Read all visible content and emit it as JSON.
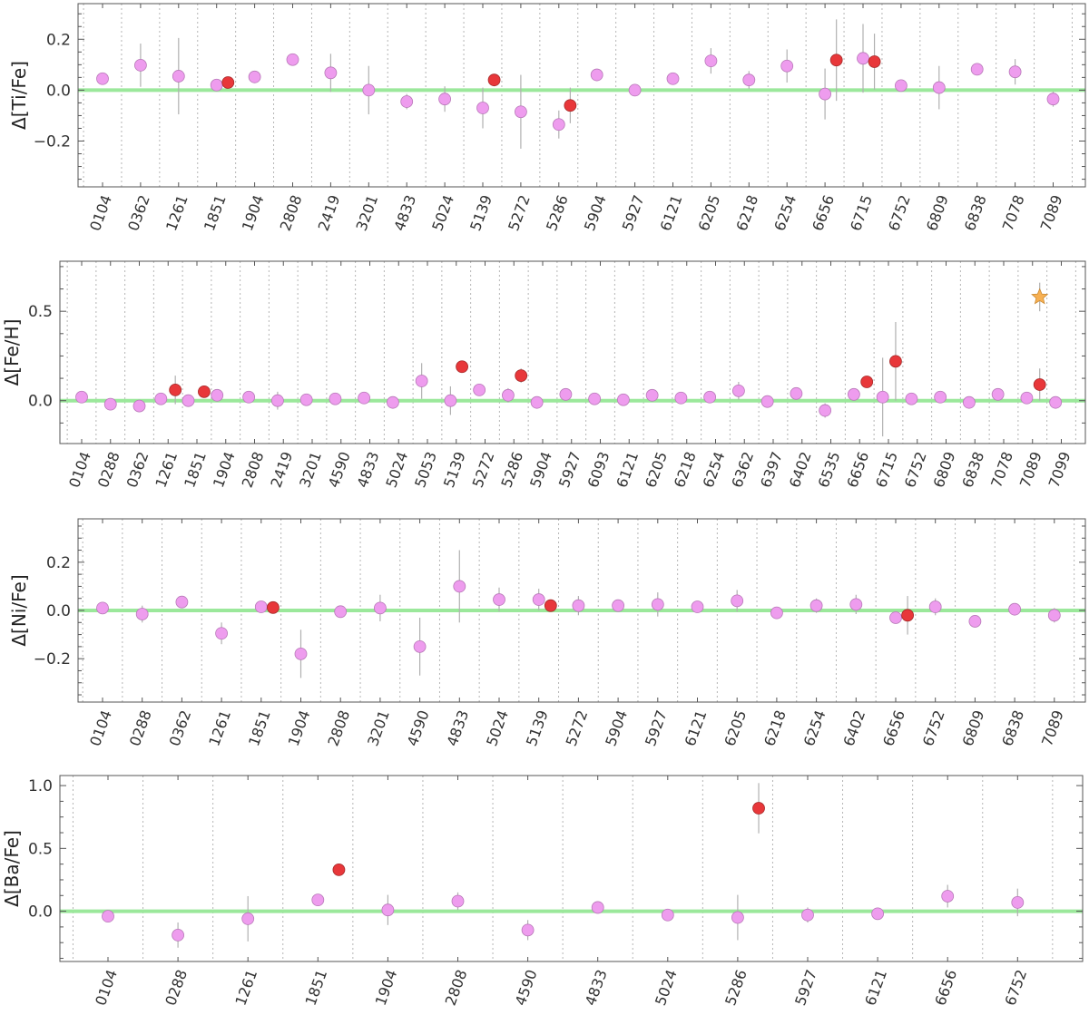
{
  "chart_data": [
    {
      "type": "scatter",
      "ylabel": "Δ[Ti/Fe]",
      "ylim": [
        -0.38,
        0.34
      ],
      "yticks": [
        -0.2,
        0.0,
        0.2
      ],
      "grid": "vertical dotted",
      "reference_line": 0.0,
      "categories": [
        "0104",
        "0362",
        "1261",
        "1851",
        "1904",
        "2808",
        "2419",
        "3201",
        "4833",
        "5024",
        "5139",
        "5272",
        "5286",
        "5904",
        "5927",
        "6121",
        "6205",
        "6218",
        "6254",
        "6656",
        "6715",
        "6752",
        "6809",
        "6838",
        "7078",
        "7089"
      ],
      "series": [
        {
          "marker": "circle",
          "color": "#ee9cee",
          "points": [
            {
              "x": 0,
              "y": 0.045,
              "err": 0.0
            },
            {
              "x": 1,
              "y": 0.098,
              "err": 0.085
            },
            {
              "x": 2,
              "y": 0.055,
              "err": 0.15
            },
            {
              "x": 3,
              "y": 0.02,
              "err": 0.0
            },
            {
              "x": 4,
              "y": 0.052,
              "err": 0.0
            },
            {
              "x": 5,
              "y": 0.12,
              "err": 0.0
            },
            {
              "x": 6,
              "y": 0.068,
              "err": 0.075
            },
            {
              "x": 7,
              "y": 0.0,
              "err": 0.095
            },
            {
              "x": 8,
              "y": -0.045,
              "err": 0.03
            },
            {
              "x": 9,
              "y": -0.035,
              "err": 0.05
            },
            {
              "x": 10,
              "y": -0.07,
              "err": 0.08
            },
            {
              "x": 11,
              "y": -0.085,
              "err": 0.145
            },
            {
              "x": 12,
              "y": -0.135,
              "err": 0.055
            },
            {
              "x": 13,
              "y": 0.06,
              "err": 0.0
            },
            {
              "x": 14,
              "y": 0.0,
              "err": 0.02
            },
            {
              "x": 15,
              "y": 0.045,
              "err": 0.0
            },
            {
              "x": 16,
              "y": 0.115,
              "err": 0.05
            },
            {
              "x": 17,
              "y": 0.04,
              "err": 0.035
            },
            {
              "x": 18,
              "y": 0.095,
              "err": 0.065
            },
            {
              "x": 19,
              "y": -0.015,
              "err": 0.1
            },
            {
              "x": 20,
              "y": 0.125,
              "err": 0.135
            },
            {
              "x": 21,
              "y": 0.018,
              "err": 0.0
            },
            {
              "x": 22,
              "y": 0.01,
              "err": 0.085
            },
            {
              "x": 23,
              "y": 0.082,
              "err": 0.0
            },
            {
              "x": 24,
              "y": 0.072,
              "err": 0.05
            },
            {
              "x": 25,
              "y": -0.035,
              "err": 0.03
            }
          ]
        },
        {
          "marker": "circle",
          "color": "#e8373a",
          "points": [
            {
              "x": 3.3,
              "y": 0.03,
              "err": 0.0
            },
            {
              "x": 10.3,
              "y": 0.04,
              "err": 0.0
            },
            {
              "x": 12.3,
              "y": -0.06,
              "err": 0.07
            },
            {
              "x": 19.3,
              "y": 0.118,
              "err": 0.16
            },
            {
              "x": 20.3,
              "y": 0.112,
              "err": 0.11
            }
          ]
        }
      ]
    },
    {
      "type": "scatter",
      "ylabel": "Δ[Fe/H]",
      "ylim": [
        -0.24,
        0.78
      ],
      "yticks": [
        0.0,
        0.5
      ],
      "grid": "vertical dotted",
      "reference_line": 0.0,
      "categories": [
        "0104",
        "0288",
        "0362",
        "1261",
        "1851",
        "1904",
        "2808",
        "2419",
        "3201",
        "4590",
        "4833",
        "5024",
        "5053",
        "5139",
        "5272",
        "5286",
        "5904",
        "5927",
        "6093",
        "6121",
        "6205",
        "6218",
        "6254",
        "6362",
        "6397",
        "6402",
        "6535",
        "6656",
        "6715",
        "6752",
        "6809",
        "6838",
        "7078",
        "7089",
        "7099"
      ],
      "series": [
        {
          "marker": "circle",
          "color": "#ee9cee",
          "points": [
            {
              "x": 0,
              "y": 0.02,
              "err": 0.0
            },
            {
              "x": 1,
              "y": -0.02,
              "err": 0.0
            },
            {
              "x": 2,
              "y": -0.03,
              "err": 0.0
            },
            {
              "x": 2.75,
              "y": 0.01,
              "err": 0.0
            },
            {
              "x": 3.7,
              "y": 0.0,
              "err": 0.0
            },
            {
              "x": 4.7,
              "y": 0.03,
              "err": 0.0
            },
            {
              "x": 5.8,
              "y": 0.02,
              "err": 0.0
            },
            {
              "x": 6.8,
              "y": 0.0,
              "err": 0.05
            },
            {
              "x": 7.8,
              "y": 0.005,
              "err": 0.0
            },
            {
              "x": 8.8,
              "y": 0.01,
              "err": 0.0
            },
            {
              "x": 9.8,
              "y": 0.015,
              "err": 0.0
            },
            {
              "x": 10.8,
              "y": -0.01,
              "err": 0.0
            },
            {
              "x": 11.8,
              "y": 0.11,
              "err": 0.1
            },
            {
              "x": 12.8,
              "y": 0.0,
              "err": 0.08
            },
            {
              "x": 13.8,
              "y": 0.06,
              "err": 0.0
            },
            {
              "x": 14.8,
              "y": 0.03,
              "err": 0.04
            },
            {
              "x": 15.8,
              "y": -0.01,
              "err": 0.0
            },
            {
              "x": 16.8,
              "y": 0.035,
              "err": 0.0
            },
            {
              "x": 17.8,
              "y": 0.01,
              "err": 0.0
            },
            {
              "x": 18.8,
              "y": 0.005,
              "err": 0.0
            },
            {
              "x": 19.8,
              "y": 0.03,
              "err": 0.0
            },
            {
              "x": 20.8,
              "y": 0.015,
              "err": 0.0
            },
            {
              "x": 21.8,
              "y": 0.02,
              "err": 0.0
            },
            {
              "x": 22.8,
              "y": 0.055,
              "err": 0.05
            },
            {
              "x": 23.8,
              "y": -0.005,
              "err": 0.0
            },
            {
              "x": 24.8,
              "y": 0.04,
              "err": 0.0
            },
            {
              "x": 25.8,
              "y": -0.055,
              "err": 0.04
            },
            {
              "x": 26.8,
              "y": 0.035,
              "err": 0.0
            },
            {
              "x": 27.8,
              "y": 0.02,
              "err": 0.22
            },
            {
              "x": 28.8,
              "y": 0.01,
              "err": 0.0
            },
            {
              "x": 29.8,
              "y": 0.02,
              "err": 0.0
            },
            {
              "x": 30.8,
              "y": -0.01,
              "err": 0.0
            },
            {
              "x": 31.8,
              "y": 0.035,
              "err": 0.0
            },
            {
              "x": 32.8,
              "y": 0.015,
              "err": 0.0
            },
            {
              "x": 33.8,
              "y": -0.01,
              "err": 0.0
            }
          ]
        },
        {
          "marker": "circle",
          "color": "#e8373a",
          "points": [
            {
              "x": 3.25,
              "y": 0.06,
              "err": 0.08
            },
            {
              "x": 4.25,
              "y": 0.05,
              "err": 0.0
            },
            {
              "x": 13.2,
              "y": 0.19,
              "err": 0.0
            },
            {
              "x": 15.25,
              "y": 0.14,
              "err": 0.04
            },
            {
              "x": 27.25,
              "y": 0.105,
              "err": 0.0
            },
            {
              "x": 28.25,
              "y": 0.22,
              "err": 0.22
            },
            {
              "x": 33.25,
              "y": 0.09,
              "err": 0.09
            }
          ]
        },
        {
          "marker": "star",
          "color": "#f7b052",
          "points": [
            {
              "x": 33.25,
              "y": 0.58,
              "err": 0.08
            }
          ]
        }
      ]
    },
    {
      "type": "scatter",
      "ylabel": "Δ[Ni/Fe]",
      "ylim": [
        -0.38,
        0.38
      ],
      "yticks": [
        -0.2,
        0.0,
        0.2
      ],
      "grid": "vertical dotted",
      "reference_line": 0.0,
      "categories": [
        "0104",
        "0288",
        "0362",
        "1261",
        "1851",
        "1904",
        "2808",
        "3201",
        "4590",
        "4833",
        "5024",
        "5139",
        "5272",
        "5904",
        "5927",
        "6121",
        "6205",
        "6218",
        "6254",
        "6402",
        "6656",
        "6752",
        "6809",
        "6838",
        "7089"
      ],
      "series": [
        {
          "marker": "circle",
          "color": "#ee9cee",
          "points": [
            {
              "x": 0,
              "y": 0.01,
              "err": 0.0
            },
            {
              "x": 1,
              "y": -0.015,
              "err": 0.035
            },
            {
              "x": 2,
              "y": 0.035,
              "err": 0.025
            },
            {
              "x": 3,
              "y": -0.095,
              "err": 0.045
            },
            {
              "x": 4,
              "y": 0.015,
              "err": 0.0
            },
            {
              "x": 5,
              "y": -0.18,
              "err": 0.1
            },
            {
              "x": 6,
              "y": -0.005,
              "err": 0.0
            },
            {
              "x": 7,
              "y": 0.01,
              "err": 0.055
            },
            {
              "x": 8,
              "y": -0.15,
              "err": 0.12
            },
            {
              "x": 9,
              "y": 0.1,
              "err": 0.15
            },
            {
              "x": 10,
              "y": 0.045,
              "err": 0.05
            },
            {
              "x": 11,
              "y": 0.045,
              "err": 0.045
            },
            {
              "x": 12,
              "y": 0.02,
              "err": 0.04
            },
            {
              "x": 13,
              "y": 0.02,
              "err": 0.025
            },
            {
              "x": 14,
              "y": 0.025,
              "err": 0.05
            },
            {
              "x": 15,
              "y": 0.015,
              "err": 0.0
            },
            {
              "x": 16,
              "y": 0.04,
              "err": 0.045
            },
            {
              "x": 17,
              "y": -0.01,
              "err": 0.025
            },
            {
              "x": 18,
              "y": 0.02,
              "err": 0.03
            },
            {
              "x": 19,
              "y": 0.025,
              "err": 0.04
            },
            {
              "x": 20,
              "y": -0.03,
              "err": 0.0
            },
            {
              "x": 21,
              "y": 0.015,
              "err": 0.035
            },
            {
              "x": 22,
              "y": -0.045,
              "err": 0.0
            },
            {
              "x": 23,
              "y": 0.005,
              "err": 0.0
            },
            {
              "x": 24,
              "y": -0.02,
              "err": 0.03
            }
          ]
        },
        {
          "marker": "circle",
          "color": "#e8373a",
          "points": [
            {
              "x": 4.3,
              "y": 0.012,
              "err": 0.0
            },
            {
              "x": 11.3,
              "y": 0.02,
              "err": 0.0
            },
            {
              "x": 20.3,
              "y": -0.02,
              "err": 0.08
            }
          ]
        }
      ]
    },
    {
      "type": "scatter",
      "ylabel": "Δ[Ba/Fe]",
      "ylim": [
        -0.4,
        1.08
      ],
      "yticks": [
        0.0,
        0.5,
        1.0
      ],
      "grid": "vertical dotted",
      "reference_line": 0.0,
      "categories": [
        "0104",
        "0288",
        "1261",
        "1851",
        "1904",
        "2808",
        "4590",
        "4833",
        "5024",
        "5286",
        "5927",
        "6121",
        "6656",
        "6752"
      ],
      "series": [
        {
          "marker": "circle",
          "color": "#ee9cee",
          "points": [
            {
              "x": 0,
              "y": -0.04,
              "err": 0.0
            },
            {
              "x": 1,
              "y": -0.19,
              "err": 0.1
            },
            {
              "x": 2,
              "y": -0.06,
              "err": 0.18
            },
            {
              "x": 3,
              "y": 0.09,
              "err": 0.0
            },
            {
              "x": 4,
              "y": 0.01,
              "err": 0.12
            },
            {
              "x": 5,
              "y": 0.08,
              "err": 0.07
            },
            {
              "x": 6,
              "y": -0.15,
              "err": 0.08
            },
            {
              "x": 7,
              "y": 0.03,
              "err": 0.0
            },
            {
              "x": 8,
              "y": -0.03,
              "err": 0.0
            },
            {
              "x": 9,
              "y": -0.05,
              "err": 0.18
            },
            {
              "x": 10,
              "y": -0.03,
              "err": 0.06
            },
            {
              "x": 11,
              "y": -0.02,
              "err": 0.0
            },
            {
              "x": 12,
              "y": 0.12,
              "err": 0.09
            },
            {
              "x": 13,
              "y": 0.07,
              "err": 0.11
            }
          ]
        },
        {
          "marker": "circle",
          "color": "#e8373a",
          "points": [
            {
              "x": 3.3,
              "y": 0.33,
              "err": 0.0
            },
            {
              "x": 9.3,
              "y": 0.82,
              "err": 0.2
            }
          ]
        }
      ]
    }
  ]
}
